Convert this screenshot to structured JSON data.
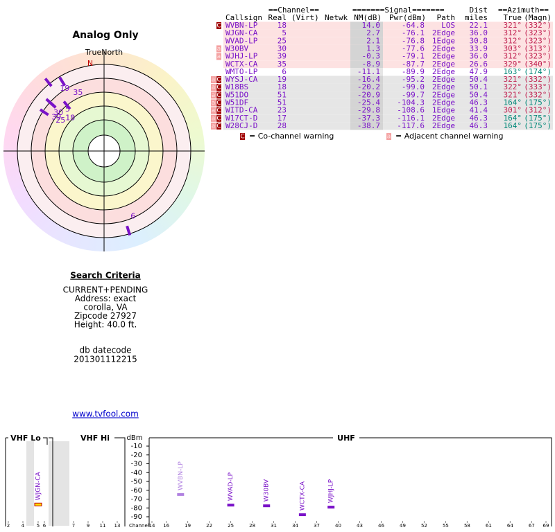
{
  "radar": {
    "title": "Analog Only",
    "north_label": "TrueNorth",
    "north": "N"
  },
  "table": {
    "group_headers": [
      "==Channel==",
      "=======Signal=======",
      "Dist",
      "==Azimuth=="
    ],
    "headers": [
      "Callsign",
      "Real",
      "(Virt)",
      "Netwk",
      "NM(dB)",
      "Pwr(dBm)",
      "Path",
      "miles",
      "True",
      "(Magn)"
    ],
    "rows": [
      {
        "flags": [
          "C"
        ],
        "callsign": "WVBN-LP",
        "real": 18,
        "nm": "14.0",
        "pwr": "-64.8",
        "path": "LOS",
        "dist": "22.1",
        "az_true": "321°",
        "az_magn": "(332°)"
      },
      {
        "flags": [],
        "callsign": "WJGN-CA",
        "real": 5,
        "nm": "2.7",
        "pwr": "-76.1",
        "path": "2Edge",
        "dist": "36.0",
        "az_true": "312°",
        "az_magn": "(323°)"
      },
      {
        "flags": [],
        "callsign": "WVAD-LP",
        "real": 25,
        "nm": "2.1",
        "pwr": "-76.8",
        "path": "1Edge",
        "dist": "30.8",
        "az_true": "312°",
        "az_magn": "(323°)"
      },
      {
        "flags": [
          "a"
        ],
        "callsign": "W30BV",
        "real": 30,
        "nm": "1.3",
        "pwr": "-77.6",
        "path": "2Edge",
        "dist": "33.9",
        "az_true": "303°",
        "az_magn": "(313°)"
      },
      {
        "flags": [
          "a"
        ],
        "callsign": "WJHJ-LP",
        "real": 39,
        "nm": "-0.3",
        "pwr": "-79.1",
        "path": "2Edge",
        "dist": "36.0",
        "az_true": "312°",
        "az_magn": "(323°)"
      },
      {
        "flags": [],
        "callsign": "WCTX-CA",
        "real": 35,
        "nm": "-8.9",
        "pwr": "-87.7",
        "path": "2Edge",
        "dist": "26.6",
        "az_true": "329°",
        "az_magn": "(340°)"
      },
      {
        "flags": [],
        "callsign": "WMTO-LP",
        "real": 6,
        "nm": "-11.1",
        "pwr": "-89.9",
        "path": "2Edge",
        "dist": "47.9",
        "az_true": "163°",
        "az_magn": "(174°)"
      },
      {
        "flags": [
          "a",
          "C"
        ],
        "callsign": "WYSJ-CA",
        "real": 19,
        "nm": "-16.4",
        "pwr": "-95.2",
        "path": "2Edge",
        "dist": "50.4",
        "az_true": "321°",
        "az_magn": "(332°)"
      },
      {
        "flags": [
          "a",
          "C"
        ],
        "callsign": "W18BS",
        "real": 18,
        "nm": "-20.2",
        "pwr": "-99.0",
        "path": "2Edge",
        "dist": "50.1",
        "az_true": "322°",
        "az_magn": "(333°)"
      },
      {
        "flags": [
          "a",
          "C"
        ],
        "callsign": "W51DO",
        "real": 51,
        "nm": "-20.9",
        "pwr": "-99.7",
        "path": "2Edge",
        "dist": "50.4",
        "az_true": "321°",
        "az_magn": "(332°)"
      },
      {
        "flags": [
          "a",
          "C"
        ],
        "callsign": "W51DF",
        "real": 51,
        "nm": "-25.4",
        "pwr": "-104.3",
        "path": "2Edge",
        "dist": "46.3",
        "az_true": "164°",
        "az_magn": "(175°)"
      },
      {
        "flags": [
          "a",
          "C"
        ],
        "callsign": "WITD-CA",
        "real": 23,
        "nm": "-29.8",
        "pwr": "-108.6",
        "path": "1Edge",
        "dist": "41.4",
        "az_true": "301°",
        "az_magn": "(312°)"
      },
      {
        "flags": [
          "a",
          "C"
        ],
        "callsign": "W17CT-D",
        "real": 17,
        "nm": "-37.3",
        "pwr": "-116.1",
        "path": "2Edge",
        "dist": "46.3",
        "az_true": "164°",
        "az_magn": "(175°)"
      },
      {
        "flags": [
          "a",
          "C"
        ],
        "callsign": "W28CJ-D",
        "real": 28,
        "nm": "-38.7",
        "pwr": "-117.6",
        "path": "2Edge",
        "dist": "46.3",
        "az_true": "164°",
        "az_magn": "(175°)"
      }
    ],
    "legend": [
      {
        "mark": "C",
        "text": "= Co-channel warning"
      },
      {
        "mark": "a",
        "text": "= Adjacent channel warning"
      }
    ]
  },
  "search": {
    "heading": "Search Criteria",
    "lines": [
      "CURRENT+PENDING",
      "Address: exact",
      "corolla, VA",
      "Zipcode 27927",
      "Height: 40.0 ft."
    ],
    "datecode": [
      "db datecode",
      "201301112215"
    ],
    "link": "www.tvfool.com"
  },
  "spectrum": {
    "bands": [
      "VHF Lo",
      "VHF Hi",
      "UHF"
    ],
    "unit": "dBm",
    "axis_label": "Channel",
    "ylim": [
      -5,
      -97
    ],
    "yticks": [
      -10,
      -20,
      -30,
      -40,
      -50,
      -60,
      -70,
      -80,
      -90
    ],
    "vhf_channels": [
      2,
      4,
      5,
      6,
      7,
      9,
      11,
      13
    ],
    "uhf_channels": [
      14,
      16,
      19,
      22,
      25,
      28,
      31,
      34,
      37,
      40,
      43,
      46,
      49,
      52,
      55,
      58,
      61,
      64,
      67,
      69
    ]
  }
}
